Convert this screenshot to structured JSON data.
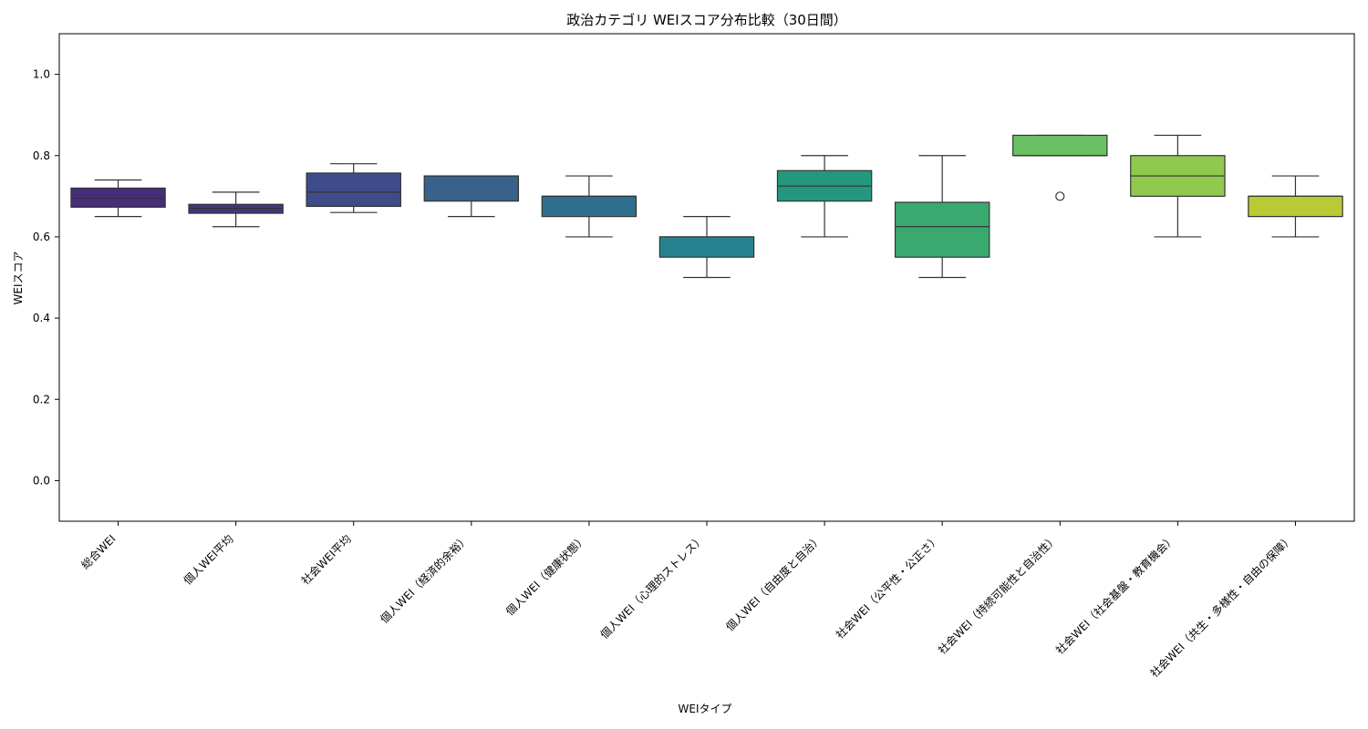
{
  "chart_data": {
    "type": "box",
    "title": "政治カテゴリ WEIスコア分布比較（30日間）",
    "xlabel": "WEIタイプ",
    "ylabel": "WEIスコア",
    "ylim": [
      -0.1,
      1.1
    ],
    "yticks": [
      0.0,
      0.2,
      0.4,
      0.6,
      0.8,
      1.0
    ],
    "grid": false,
    "categories": [
      "総合WEI",
      "個人WEI平均",
      "社会WEI平均",
      "個人WEI（経済的余裕）",
      "個人WEI（健康状態）",
      "個人WEI（心理的ストレス）",
      "個人WEI（自由度と自治）",
      "社会WEI（公平性・公正さ）",
      "社会WEI（持続可能性と自治性）",
      "社会WEI（社会基盤・教育機会）",
      "社会WEI（共生・多様性・自由の保障）"
    ],
    "boxes": [
      {
        "whisker_low": 0.65,
        "q1": 0.673,
        "median": 0.695,
        "q3": 0.72,
        "whisker_high": 0.74,
        "outliers": [],
        "color": "#472d7b"
      },
      {
        "whisker_low": 0.625,
        "q1": 0.658,
        "median": 0.67,
        "q3": 0.68,
        "whisker_high": 0.71,
        "outliers": [],
        "color": "#463480"
      },
      {
        "whisker_low": 0.66,
        "q1": 0.675,
        "median": 0.71,
        "q3": 0.757,
        "whisker_high": 0.78,
        "outliers": [],
        "color": "#3e4c8a"
      },
      {
        "whisker_low": 0.65,
        "q1": 0.688,
        "median": 0.75,
        "q3": 0.75,
        "whisker_high": 0.75,
        "outliers": [],
        "color": "#38618c"
      },
      {
        "whisker_low": 0.6,
        "q1": 0.65,
        "median": 0.7,
        "q3": 0.7,
        "whisker_high": 0.75,
        "outliers": [],
        "color": "#2e6f8e"
      },
      {
        "whisker_low": 0.5,
        "q1": 0.55,
        "median": 0.6,
        "q3": 0.6,
        "whisker_high": 0.65,
        "outliers": [],
        "color": "#26828e"
      },
      {
        "whisker_low": 0.6,
        "q1": 0.688,
        "median": 0.725,
        "q3": 0.763,
        "whisker_high": 0.8,
        "outliers": [],
        "color": "#24987f"
      },
      {
        "whisker_low": 0.5,
        "q1": 0.55,
        "median": 0.625,
        "q3": 0.685,
        "whisker_high": 0.8,
        "outliers": [],
        "color": "#3aa96f"
      },
      {
        "whisker_low": 0.8,
        "q1": 0.8,
        "median": 0.8,
        "q3": 0.85,
        "whisker_high": 0.85,
        "outliers": [
          0.7
        ],
        "color": "#6cc064"
      },
      {
        "whisker_low": 0.6,
        "q1": 0.7,
        "median": 0.75,
        "q3": 0.8,
        "whisker_high": 0.85,
        "outliers": [],
        "color": "#90c94e"
      },
      {
        "whisker_low": 0.6,
        "q1": 0.65,
        "median": 0.7,
        "q3": 0.7,
        "whisker_high": 0.75,
        "outliers": [],
        "color": "#b8cb35"
      }
    ]
  }
}
